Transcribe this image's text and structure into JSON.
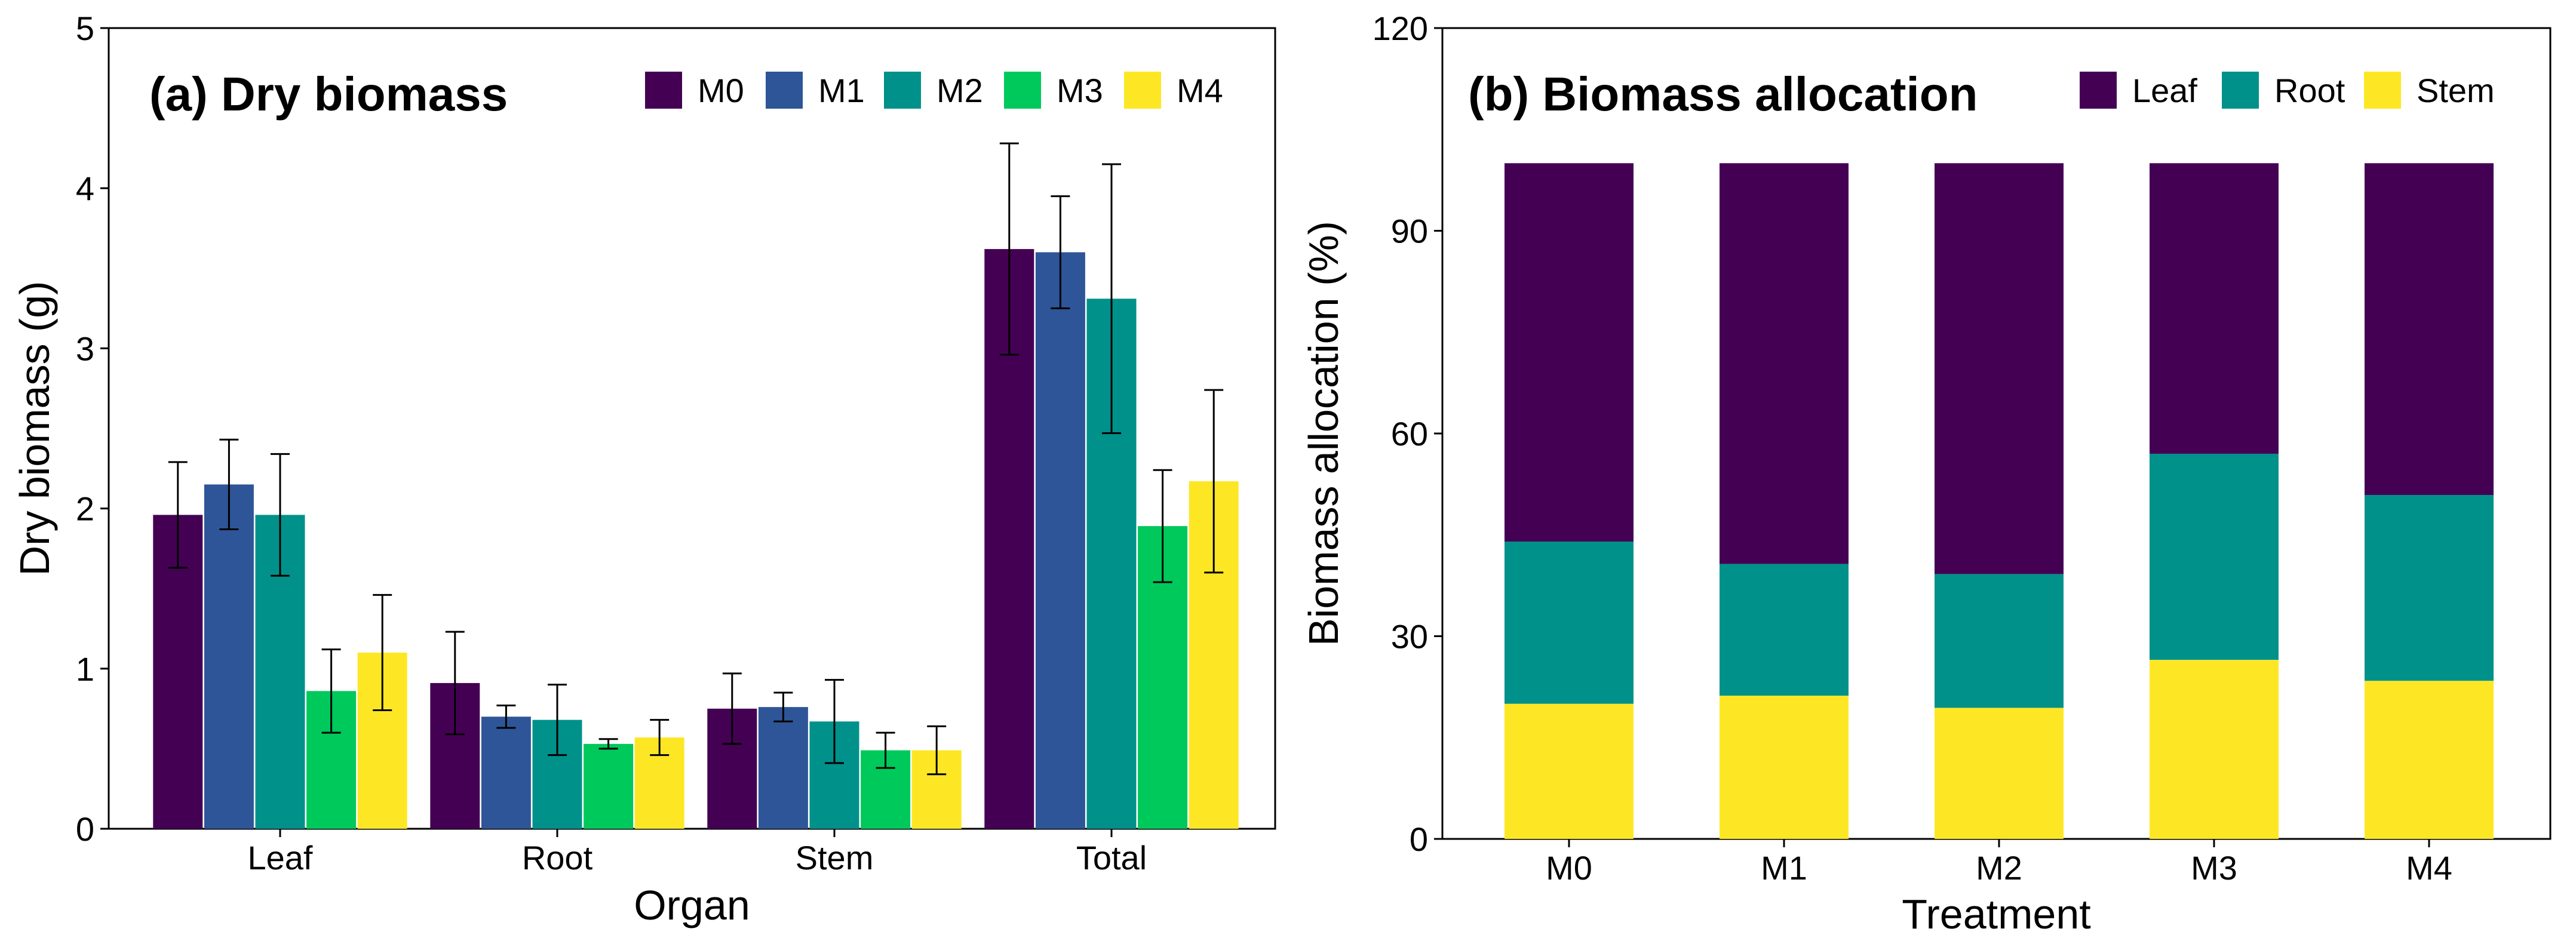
{
  "chart_data": [
    {
      "type": "bar",
      "title": "(a) Dry biomass",
      "xlabel": "Organ",
      "ylabel": "Dry biomass (g)",
      "ylim": [
        0,
        5
      ],
      "yticks": [
        0,
        1,
        2,
        3,
        4,
        5
      ],
      "categories": [
        "Leaf",
        "Root",
        "Stem",
        "Total"
      ],
      "series": [
        {
          "name": "M0",
          "color": "#440154",
          "values": [
            1.96,
            0.91,
            0.75,
            3.62
          ],
          "errors": [
            0.33,
            0.32,
            0.22,
            0.66
          ]
        },
        {
          "name": "M1",
          "color": "#2E5597",
          "values": [
            2.15,
            0.7,
            0.76,
            3.6
          ],
          "errors": [
            0.28,
            0.07,
            0.09,
            0.35
          ]
        },
        {
          "name": "M2",
          "color": "#00918A",
          "values": [
            1.96,
            0.68,
            0.67,
            3.31
          ],
          "errors": [
            0.38,
            0.22,
            0.26,
            0.84
          ]
        },
        {
          "name": "M3",
          "color": "#00C95B",
          "values": [
            0.86,
            0.53,
            0.49,
            1.89
          ],
          "errors": [
            0.26,
            0.03,
            0.11,
            0.35
          ]
        },
        {
          "name": "M4",
          "color": "#FDE725",
          "values": [
            1.1,
            0.57,
            0.49,
            2.17
          ],
          "errors": [
            0.36,
            0.11,
            0.15,
            0.57
          ]
        }
      ]
    },
    {
      "type": "bar",
      "stacked": true,
      "title": "(b) Biomass allocation",
      "xlabel": "Treatment",
      "ylabel": "Biomass allocation (%)",
      "ylim": [
        0,
        120
      ],
      "yticks": [
        0,
        30,
        60,
        90,
        120
      ],
      "categories": [
        "M0",
        "M1",
        "M2",
        "M3",
        "M4"
      ],
      "series": [
        {
          "name": "Stem",
          "color": "#FDE725",
          "values": [
            20.0,
            21.2,
            19.4,
            26.5,
            23.4
          ]
        },
        {
          "name": "Root",
          "color": "#00918A",
          "values": [
            24.0,
            19.5,
            19.8,
            30.5,
            27.5
          ]
        },
        {
          "name": "Leaf",
          "color": "#440154",
          "values": [
            56.0,
            59.3,
            60.8,
            43.0,
            49.1
          ]
        }
      ],
      "legend_order": [
        "Leaf",
        "Root",
        "Stem"
      ]
    }
  ]
}
